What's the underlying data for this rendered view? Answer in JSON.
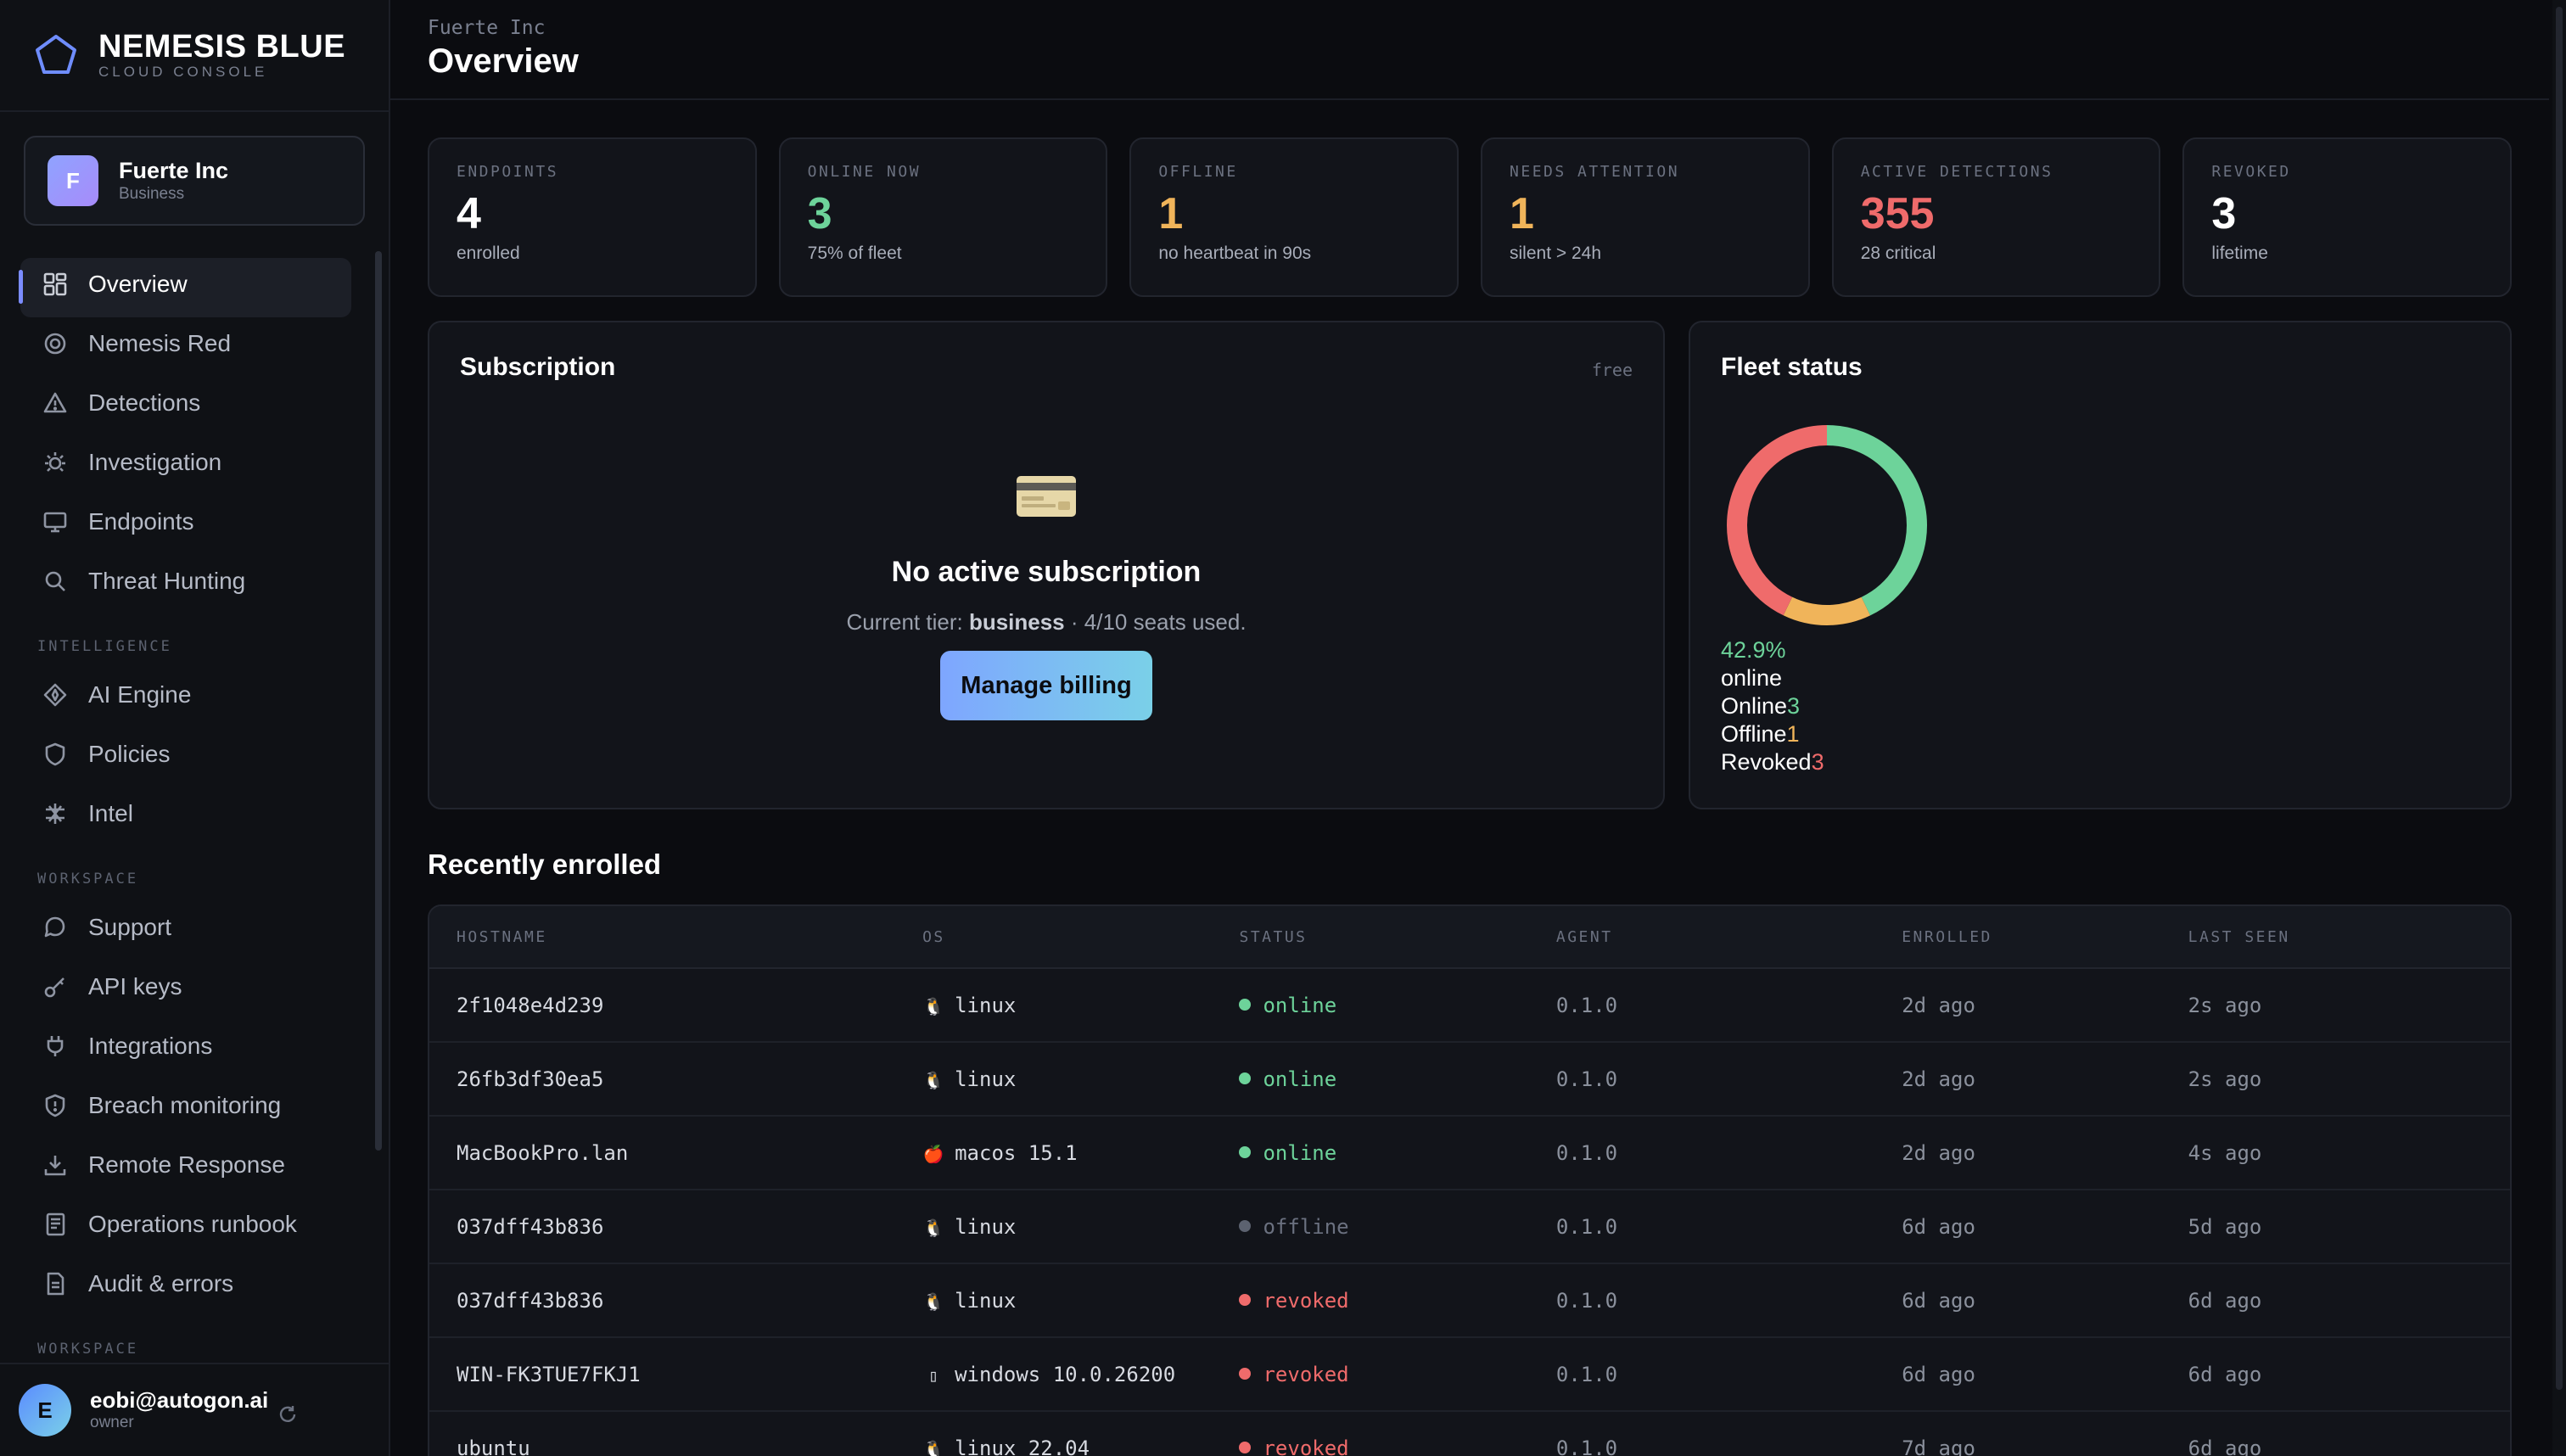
{
  "brand": {
    "name": "NEMESIS BLUE",
    "subtitle": "CLOUD CONSOLE"
  },
  "org": {
    "initial": "F",
    "name": "Fuerte Inc",
    "plan": "Business"
  },
  "nav": {
    "primary": [
      {
        "label": "Overview",
        "icon": "grid-icon",
        "active": true
      },
      {
        "label": "Nemesis Red",
        "icon": "target-icon"
      },
      {
        "label": "Detections",
        "icon": "alert-triangle-icon"
      },
      {
        "label": "Investigation",
        "icon": "bug-icon"
      },
      {
        "label": "Endpoints",
        "icon": "monitor-icon"
      },
      {
        "label": "Threat Hunting",
        "icon": "search-icon"
      }
    ],
    "section_intelligence": "INTELLIGENCE",
    "intelligence": [
      {
        "label": "AI Engine",
        "icon": "sparkle-icon"
      },
      {
        "label": "Policies",
        "icon": "shield-icon"
      },
      {
        "label": "Intel",
        "icon": "network-icon"
      }
    ],
    "section_workspace": "WORKSPACE",
    "workspace": [
      {
        "label": "Support",
        "icon": "chat-icon"
      },
      {
        "label": "API keys",
        "icon": "key-icon"
      },
      {
        "label": "Integrations",
        "icon": "plug-icon"
      },
      {
        "label": "Breach monitoring",
        "icon": "shield-alert-icon"
      },
      {
        "label": "Remote Response",
        "icon": "download-icon"
      },
      {
        "label": "Operations runbook",
        "icon": "book-icon"
      },
      {
        "label": "Audit & errors",
        "icon": "file-icon"
      }
    ],
    "section_workspace_2": "WORKSPACE"
  },
  "user": {
    "initial": "E",
    "email": "eobi@autogon.ai",
    "role": "owner"
  },
  "header": {
    "breadcrumb": "Fuerte Inc",
    "title": "Overview"
  },
  "stats": [
    {
      "label": "ENDPOINTS",
      "value": "4",
      "sub": "enrolled",
      "color": "#ffffff"
    },
    {
      "label": "ONLINE NOW",
      "value": "3",
      "sub": "75% of fleet",
      "color": "#6dd39a"
    },
    {
      "label": "OFFLINE",
      "value": "1",
      "sub": "no heartbeat in 90s",
      "color": "#f0b45a"
    },
    {
      "label": "NEEDS ATTENTION",
      "value": "1",
      "sub": "silent > 24h",
      "color": "#f0b45a"
    },
    {
      "label": "ACTIVE DETECTIONS",
      "value": "355",
      "sub": "28 critical",
      "color": "#ef6b6b"
    },
    {
      "label": "REVOKED",
      "value": "3",
      "sub": "lifetime",
      "color": "#ffffff"
    }
  ],
  "subscription": {
    "title": "Subscription",
    "tag": "free",
    "empty_title": "No active subscription",
    "desc_prefix": "Current tier: ",
    "tier": "business",
    "desc_suffix": " · 4/10 seats used.",
    "button": "Manage billing"
  },
  "fleet": {
    "title": "Fleet status",
    "percent": "42.9%",
    "percent_label": "online",
    "legend": [
      {
        "label": "Online",
        "value": "3",
        "color": "#6dd39a"
      },
      {
        "label": "Offline",
        "value": "1",
        "color": "#f0b45a"
      },
      {
        "label": "Revoked",
        "value": "3",
        "color": "#ef6b6b"
      }
    ]
  },
  "recent": {
    "title": "Recently enrolled",
    "columns": [
      "HOSTNAME",
      "OS",
      "STATUS",
      "AGENT",
      "ENROLLED",
      "LAST SEEN"
    ],
    "status_colors": {
      "online": "#6dd39a",
      "offline": "#5c6270",
      "revoked": "#ef6b6b"
    },
    "rows": [
      {
        "hostname": "2f1048e4d239",
        "os_icon": "🐧",
        "os": "linux",
        "status": "online",
        "agent": "0.1.0",
        "enrolled": "2d ago",
        "last_seen": "2s ago"
      },
      {
        "hostname": "26fb3df30ea5",
        "os_icon": "🐧",
        "os": "linux",
        "status": "online",
        "agent": "0.1.0",
        "enrolled": "2d ago",
        "last_seen": "2s ago"
      },
      {
        "hostname": "MacBookPro.lan",
        "os_icon": "🍎",
        "os": "macos 15.1",
        "status": "online",
        "agent": "0.1.0",
        "enrolled": "2d ago",
        "last_seen": "4s ago"
      },
      {
        "hostname": "037dff43b836",
        "os_icon": "🐧",
        "os": "linux",
        "status": "offline",
        "agent": "0.1.0",
        "enrolled": "6d ago",
        "last_seen": "5d ago"
      },
      {
        "hostname": "037dff43b836",
        "os_icon": "🐧",
        "os": "linux",
        "status": "revoked",
        "agent": "0.1.0",
        "enrolled": "6d ago",
        "last_seen": "6d ago"
      },
      {
        "hostname": "WIN-FK3TUE7FKJ1",
        "os_icon": "▯",
        "os": "windows 10.0.26200",
        "status": "revoked",
        "agent": "0.1.0",
        "enrolled": "6d ago",
        "last_seen": "6d ago"
      },
      {
        "hostname": "ubuntu",
        "os_icon": "🐧",
        "os": "linux 22.04",
        "status": "revoked",
        "agent": "0.1.0",
        "enrolled": "7d ago",
        "last_seen": "6d ago"
      }
    ]
  }
}
